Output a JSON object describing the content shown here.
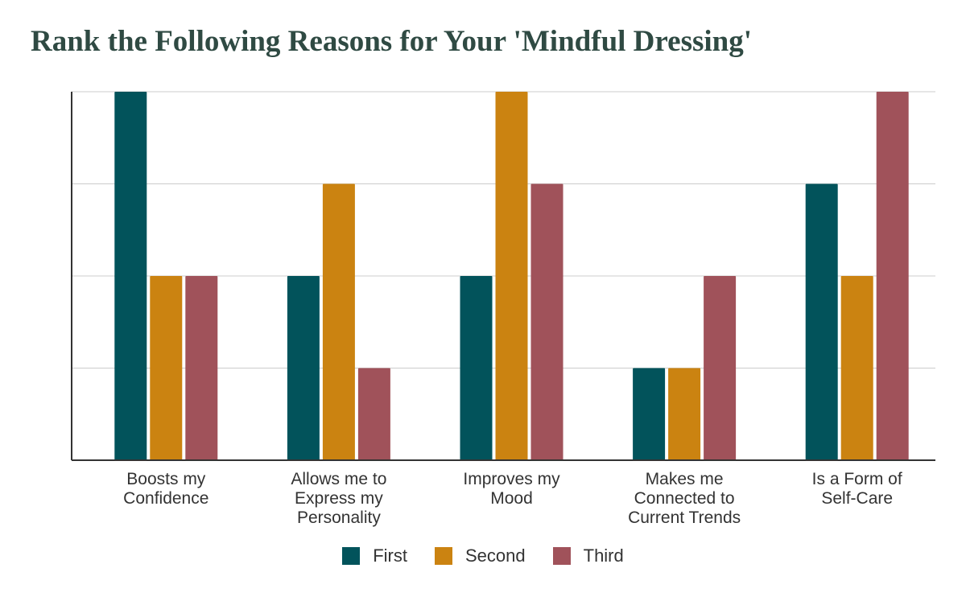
{
  "chart_data": {
    "type": "bar",
    "title": "Rank the Following Reasons for Your 'Mindful Dressing'",
    "xlabel": "",
    "ylabel": "",
    "ylim": [
      0,
      4
    ],
    "categories": [
      [
        "Boosts my",
        "Confidence"
      ],
      [
        "Allows me to",
        "Express my",
        "Personality"
      ],
      [
        "Improves my",
        "Mood"
      ],
      [
        "Makes me",
        "Connected to",
        "Current Trends"
      ],
      [
        "Is a Form of",
        "Self-Care"
      ]
    ],
    "series": [
      {
        "name": "First",
        "color": "#02535b",
        "values": [
          4,
          2,
          2,
          1,
          3
        ]
      },
      {
        "name": "Second",
        "color": "#cb8311",
        "values": [
          2,
          3,
          4,
          1,
          2
        ]
      },
      {
        "name": "Third",
        "color": "#a0525a",
        "values": [
          2,
          1,
          3,
          2,
          4
        ]
      }
    ],
    "grid": true,
    "legend_position": "bottom"
  }
}
